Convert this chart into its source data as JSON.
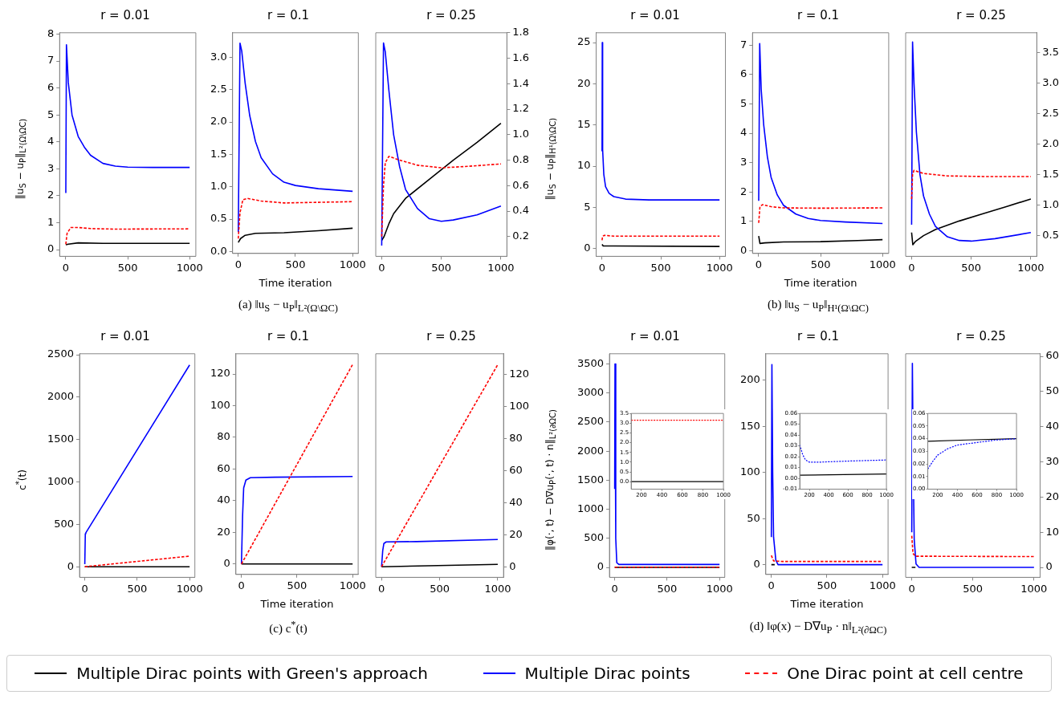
{
  "chart_data": [
    {
      "type": "line",
      "title": "r = 0.01",
      "ylabel": "‖u$_{S}$ − u$_{P}$‖$_{L²(Ω\\ΩC)}$",
      "legend": "bottom",
      "xlim": [
        -50,
        1050
      ],
      "xticks": [
        0,
        500,
        1000
      ],
      "ylim": [
        -0.25,
        8.05
      ],
      "yticks": [
        0,
        1,
        2,
        3,
        4,
        5,
        6,
        7,
        8
      ],
      "series": [
        {
          "name": "Multiple Dirac points with Green's approach",
          "color": "#000000",
          "x": [
            0,
            20,
            100,
            300,
            1000
          ],
          "values": [
            0.18,
            0.2,
            0.25,
            0.23,
            0.23
          ]
        },
        {
          "name": "Multiple Dirac points",
          "color": "#0000ff",
          "x": [
            0,
            5,
            20,
            50,
            100,
            150,
            200,
            300,
            400,
            500,
            700,
            1000
          ],
          "values": [
            2.1,
            7.6,
            6.2,
            5,
            4.2,
            3.8,
            3.5,
            3.2,
            3.1,
            3.06,
            3.05,
            3.05
          ]
        },
        {
          "name": "One Dirac point at cell centre",
          "color": "#ff0000",
          "line_style": "dashed",
          "x": [
            0,
            10,
            40,
            100,
            200,
            400,
            1000
          ],
          "values": [
            0.2,
            0.6,
            0.82,
            0.82,
            0.78,
            0.76,
            0.77
          ]
        }
      ]
    },
    {
      "type": "line",
      "title": "r = 0.1",
      "xlabel": "Time iteration",
      "annotations": [
        "(a)  ‖u$_{S}$ − u$_{P}$‖$_{L²(Ω\\ΩC)}$"
      ],
      "xlim": [
        -50,
        1050
      ],
      "xticks": [
        0,
        500,
        1000
      ],
      "ylim": [
        -0.03,
        3.38
      ],
      "yticks": [
        {
          "value": 0,
          "label": "0.0"
        },
        0.5,
        {
          "value": 1,
          "label": "1.0"
        },
        1.5,
        {
          "value": 2,
          "label": "2.0"
        },
        2.5,
        {
          "value": 3,
          "label": "3.0"
        }
      ],
      "series": [
        {
          "color": "#000000",
          "x": [
            0,
            20,
            60,
            150,
            400,
            700,
            1000
          ],
          "values": [
            0.14,
            0.2,
            0.25,
            0.28,
            0.29,
            0.32,
            0.36
          ]
        },
        {
          "color": "#0000ff",
          "x": [
            0,
            15,
            30,
            60,
            100,
            150,
            200,
            300,
            400,
            500,
            700,
            1000
          ],
          "values": [
            0.3,
            3.22,
            3.1,
            2.6,
            2.1,
            1.7,
            1.45,
            1.2,
            1.07,
            1.02,
            0.97,
            0.93
          ]
        },
        {
          "color": "#ff0000",
          "line_style": "dashed",
          "x": [
            0,
            15,
            40,
            80,
            200,
            400,
            700,
            1000
          ],
          "values": [
            0.2,
            0.6,
            0.8,
            0.82,
            0.78,
            0.75,
            0.76,
            0.77
          ]
        }
      ]
    },
    {
      "type": "line",
      "title": "r = 0.25",
      "xlim": [
        -50,
        1050
      ],
      "xticks": [
        0,
        500,
        1000
      ],
      "y2lim": [
        0.045,
        1.8
      ],
      "y2ticks": [
        0.2,
        0.4,
        0.6,
        0.8,
        {
          "value": 1,
          "label": "1.0"
        },
        1.2,
        1.4,
        1.6,
        1.8
      ],
      "series": [
        {
          "color": "#000000",
          "axis": "y2",
          "x": [
            0,
            20,
            60,
            100,
            200,
            400,
            600,
            800,
            1000
          ],
          "values": [
            0.17,
            0.2,
            0.3,
            0.38,
            0.5,
            0.65,
            0.8,
            0.94,
            1.09
          ]
        },
        {
          "color": "#0000ff",
          "axis": "y2",
          "x": [
            0,
            15,
            30,
            60,
            100,
            150,
            200,
            300,
            400,
            500,
            600,
            800,
            1000
          ],
          "values": [
            0.13,
            1.72,
            1.65,
            1.35,
            1,
            0.75,
            0.57,
            0.42,
            0.34,
            0.32,
            0.33,
            0.37,
            0.44
          ]
        },
        {
          "color": "#ff0000",
          "axis": "y2",
          "line_style": "dashed",
          "x": [
            0,
            15,
            30,
            60,
            150,
            300,
            500,
            700,
            1000
          ],
          "values": [
            0.2,
            0.6,
            0.78,
            0.83,
            0.8,
            0.76,
            0.74,
            0.75,
            0.77
          ]
        }
      ]
    },
    {
      "type": "line",
      "title": "r = 0.01",
      "ylabel": "‖u$_{S}$ − u$_{P}$‖$_{H¹(Ω\\ΩC)}$",
      "xlim": [
        -50,
        1050
      ],
      "xticks": [
        0,
        500,
        1000
      ],
      "ylim": [
        -0.95,
        26.2
      ],
      "yticks": [
        0,
        5,
        10,
        15,
        20,
        25
      ],
      "series": [
        {
          "color": "#000000",
          "x": [
            0,
            10,
            100,
            1000
          ],
          "values": [
            0.5,
            0.3,
            0.3,
            0.25
          ]
        },
        {
          "color": "#0000ff",
          "x": [
            0,
            2,
            5,
            15,
            30,
            60,
            100,
            200,
            400,
            1000
          ],
          "values": [
            11.8,
            25,
            12,
            9,
            7.5,
            6.7,
            6.3,
            6,
            5.9,
            5.9
          ]
        },
        {
          "color": "#ff0000",
          "line_style": "dashed",
          "x": [
            0,
            5,
            20,
            100,
            1000
          ],
          "values": [
            1,
            1.5,
            1.6,
            1.5,
            1.5
          ]
        }
      ]
    },
    {
      "type": "line",
      "title": "r = 0.1",
      "xlabel": "Time iteration",
      "annotations": [
        "(b)  ‖u$_{S}$ − u$_{P}$‖$_{H¹(Ω\\ΩC)}$"
      ],
      "xlim": [
        -50,
        1050
      ],
      "xticks": [
        0,
        500,
        1000
      ],
      "ylim": [
        -0.09,
        7.42
      ],
      "yticks": [
        0,
        1,
        2,
        3,
        4,
        5,
        6,
        7
      ],
      "series": [
        {
          "color": "#000000",
          "x": [
            0,
            10,
            50,
            200,
            500,
            800,
            1000
          ],
          "values": [
            0.5,
            0.25,
            0.27,
            0.3,
            0.31,
            0.35,
            0.38
          ]
        },
        {
          "color": "#0000ff",
          "x": [
            0,
            8,
            20,
            40,
            70,
            100,
            150,
            200,
            300,
            400,
            500,
            700,
            1000
          ],
          "values": [
            1.7,
            7.05,
            5.5,
            4.3,
            3.2,
            2.5,
            1.9,
            1.55,
            1.25,
            1.1,
            1.03,
            0.98,
            0.93
          ]
        },
        {
          "color": "#ff0000",
          "line_style": "dashed",
          "x": [
            0,
            10,
            30,
            100,
            200,
            500,
            1000
          ],
          "values": [
            0.95,
            1.5,
            1.57,
            1.5,
            1.46,
            1.45,
            1.46
          ]
        }
      ]
    },
    {
      "type": "line",
      "title": "r = 0.25",
      "xlim": [
        -50,
        1050
      ],
      "xticks": [
        0,
        500,
        1000
      ],
      "y2lim": [
        0.16,
        3.83
      ],
      "y2ticks": [
        0.5,
        {
          "value": 1,
          "label": "1.0"
        },
        1.5,
        {
          "value": 2,
          "label": "2.0"
        },
        2.5,
        {
          "value": 3,
          "label": "3.0"
        },
        3.5
      ],
      "series": [
        {
          "color": "#000000",
          "axis": "y2",
          "x": [
            0,
            10,
            30,
            100,
            200,
            400,
            600,
            800,
            1000
          ],
          "values": [
            0.55,
            0.35,
            0.4,
            0.5,
            0.6,
            0.74,
            0.86,
            0.98,
            1.1
          ]
        },
        {
          "color": "#0000ff",
          "axis": "y2",
          "x": [
            0,
            8,
            20,
            40,
            70,
            100,
            150,
            200,
            300,
            400,
            500,
            700,
            1000
          ],
          "values": [
            0.68,
            3.68,
            3,
            2.2,
            1.5,
            1.15,
            0.85,
            0.65,
            0.48,
            0.42,
            0.41,
            0.45,
            0.55
          ]
        },
        {
          "color": "#ff0000",
          "axis": "y2",
          "line_style": "dashed",
          "x": [
            0,
            8,
            20,
            100,
            300,
            600,
            1000
          ],
          "values": [
            1.1,
            1.5,
            1.57,
            1.52,
            1.48,
            1.47,
            1.47
          ]
        }
      ]
    },
    {
      "type": "line",
      "title": "r = 0.01",
      "ylabel": "c$^{*}$(t)",
      "xlim": [
        -50,
        1050
      ],
      "xticks": [
        0,
        500,
        1000
      ],
      "ylim": [
        -125,
        2512
      ],
      "yticks": [
        0,
        500,
        1000,
        1500,
        2000,
        2500
      ],
      "series": [
        {
          "color": "#000000",
          "x": [
            0,
            1000
          ],
          "values": [
            0,
            0
          ]
        },
        {
          "color": "#0000ff",
          "x": [
            0,
            5,
            10,
            1000
          ],
          "values": [
            30,
            390,
            400,
            2380
          ]
        },
        {
          "color": "#ff0000",
          "line_style": "dashed",
          "x": [
            0,
            1000
          ],
          "values": [
            0,
            125
          ]
        }
      ]
    },
    {
      "type": "line",
      "title": "r = 0.1",
      "xlabel": "Time iteration",
      "annotations": [
        "(c)  c$^{*}$(t)"
      ],
      "xlim": [
        -50,
        1050
      ],
      "xticks": [
        0,
        500,
        1000
      ],
      "ylim": [
        -6.6,
        132.8
      ],
      "yticks": [
        0,
        20,
        40,
        60,
        80,
        100,
        120
      ],
      "series": [
        {
          "color": "#000000",
          "x": [
            0,
            1000
          ],
          "values": [
            0,
            0
          ]
        },
        {
          "color": "#0000ff",
          "x": [
            0,
            10,
            20,
            40,
            80,
            300,
            1000
          ],
          "values": [
            0,
            30,
            48,
            53,
            54.5,
            54.8,
            55.3
          ]
        },
        {
          "color": "#ff0000",
          "line_style": "dashed",
          "x": [
            0,
            1000
          ],
          "values": [
            0,
            126
          ]
        }
      ]
    },
    {
      "type": "line",
      "title": "r = 0.25",
      "xlim": [
        -50,
        1050
      ],
      "xticks": [
        0,
        500,
        1000
      ],
      "y2lim": [
        -6.6,
        132.8
      ],
      "y2ticks": [
        0,
        20,
        40,
        60,
        80,
        100,
        120
      ],
      "series": [
        {
          "color": "#000000",
          "axis": "y2",
          "x": [
            0,
            1000
          ],
          "values": [
            0,
            1.5
          ]
        },
        {
          "color": "#0000ff",
          "axis": "y2",
          "x": [
            0,
            10,
            20,
            40,
            300,
            1000
          ],
          "values": [
            0,
            10,
            14.5,
            15.5,
            15.7,
            17
          ]
        },
        {
          "color": "#ff0000",
          "axis": "y2",
          "line_style": "dashed",
          "x": [
            0,
            1000
          ],
          "values": [
            0,
            126
          ]
        }
      ]
    },
    {
      "type": "line",
      "title": "r = 0.01",
      "ylabel": "‖φ(·, t) − D∇u$_{P}$(·, t) · n‖$_{L²(∂ΩC)}$",
      "xlim": [
        -50,
        1050
      ],
      "xticks": [
        0,
        500,
        1000
      ],
      "ylim": [
        -171,
        3676
      ],
      "yticks": [
        0,
        500,
        1000,
        1500,
        2000,
        2500,
        3000,
        3500
      ],
      "series": [
        {
          "color": "#000000",
          "x": [
            0,
            1000
          ],
          "values": [
            0,
            0
          ]
        },
        {
          "color": "#0000ff",
          "x": [
            0,
            3,
            10,
            20,
            40,
            1000
          ],
          "values": [
            1350,
            3500,
            500,
            80,
            50,
            50
          ]
        },
        {
          "color": "#ff0000",
          "line_style": "dashed",
          "x": [
            0,
            1000
          ],
          "values": [
            3.15,
            3.15
          ]
        }
      ]
    },
    {
      "type": "line",
      "xlim": [
        100,
        1000
      ],
      "xticks": [
        200,
        400,
        600,
        800,
        1000
      ],
      "ylim": [
        -0.39,
        3.5
      ],
      "yticks": [
        {
          "value": 0,
          "label": "0.0"
        },
        0.5,
        {
          "value": 1,
          "label": "1.0"
        },
        1.5,
        {
          "value": 2,
          "label": "2.0"
        },
        2.5,
        {
          "value": 3,
          "label": "3.0"
        },
        3.5
      ],
      "series": [
        {
          "color": "#000000",
          "x": [
            100,
            1000
          ],
          "values": [
            0,
            0
          ]
        },
        {
          "color": "#ff0000",
          "line_style": "dashed",
          "x": [
            100,
            1000
          ],
          "values": [
            3.15,
            3.15
          ]
        }
      ]
    },
    {
      "type": "line",
      "title": "r = 0.1",
      "xlabel": "Time iteration",
      "annotations": [
        "(d)  ‖φ(x) − D∇u$_{P}$ · n‖$_{L²(∂ΩC)}$"
      ],
      "xlim": [
        -50,
        1050
      ],
      "xticks": [
        0,
        500,
        1000
      ],
      "ylim": [
        -10.6,
        228.7
      ],
      "yticks": [
        0,
        50,
        100,
        150,
        200
      ],
      "series": [
        {
          "color": "#000000",
          "x": [
            0,
            30
          ],
          "values": [
            0,
            0
          ]
        },
        {
          "color": "#0000ff",
          "x": [
            0,
            5,
            12,
            20,
            40,
            60,
            1000
          ],
          "values": [
            30,
            217,
            100,
            30,
            5,
            0.02,
            0.017
          ]
        },
        {
          "color": "#ff0000",
          "line_style": "dashed",
          "x": [
            0,
            20,
            100,
            1000
          ],
          "values": [
            10,
            4,
            3.5,
            3.5
          ]
        }
      ]
    },
    {
      "type": "line",
      "xlim": [
        100,
        1000
      ],
      "xticks": [
        200,
        400,
        600,
        800,
        1000
      ],
      "ylim": [
        -0.01,
        0.06
      ],
      "yticks": [
        {
          "value": -0.01,
          "label": "-0.01"
        },
        {
          "value": 0,
          "label": "0.00"
        },
        0.01,
        0.02,
        0.03,
        0.04,
        0.05,
        0.06
      ],
      "series": [
        {
          "color": "#000000",
          "x": [
            100,
            1000
          ],
          "values": [
            0.003,
            0.004
          ]
        },
        {
          "color": "#0000ff",
          "line_style": "dashed",
          "x": [
            100,
            130,
            160,
            200,
            300,
            600,
            1000
          ],
          "values": [
            0.031,
            0.022,
            0.017,
            0.015,
            0.015,
            0.016,
            0.017
          ]
        }
      ]
    },
    {
      "type": "line",
      "title": "r = 0.25",
      "xlim": [
        -50,
        1050
      ],
      "xticks": [
        0,
        500,
        1000
      ],
      "y2lim": [
        -2.8,
        60.75
      ],
      "y2ticks": [
        0,
        10,
        20,
        30,
        40,
        50,
        60
      ],
      "series": [
        {
          "color": "#000000",
          "axis": "y2",
          "x": [
            0,
            30
          ],
          "values": [
            0.04,
            0.04
          ]
        },
        {
          "color": "#0000ff",
          "axis": "y2",
          "x": [
            0,
            5,
            12,
            20,
            35,
            60,
            1000
          ],
          "values": [
            10,
            58,
            30,
            8,
            1,
            0.04,
            0.04
          ]
        },
        {
          "color": "#ff0000",
          "axis": "y2",
          "line_style": "dashed",
          "x": [
            0,
            10,
            30,
            1000
          ],
          "values": [
            9,
            4,
            3.2,
            3.1
          ]
        }
      ]
    },
    {
      "type": "line",
      "xlim": [
        100,
        1000
      ],
      "xticks": [
        200,
        400,
        600,
        800,
        1000
      ],
      "ylim": [
        0,
        0.06
      ],
      "yticks": [
        {
          "value": 0,
          "label": "0.00"
        },
        0.01,
        0.02,
        0.03,
        0.04,
        0.05,
        0.06
      ],
      "series": [
        {
          "color": "#000000",
          "x": [
            100,
            500,
            1000
          ],
          "values": [
            0.038,
            0.039,
            0.04
          ]
        },
        {
          "color": "#0000ff",
          "line_style": "dashed",
          "x": [
            100,
            150,
            200,
            300,
            400,
            600,
            800,
            1000
          ],
          "values": [
            0.016,
            0.022,
            0.027,
            0.032,
            0.035,
            0.037,
            0.039,
            0.04
          ]
        }
      ]
    }
  ]
}
